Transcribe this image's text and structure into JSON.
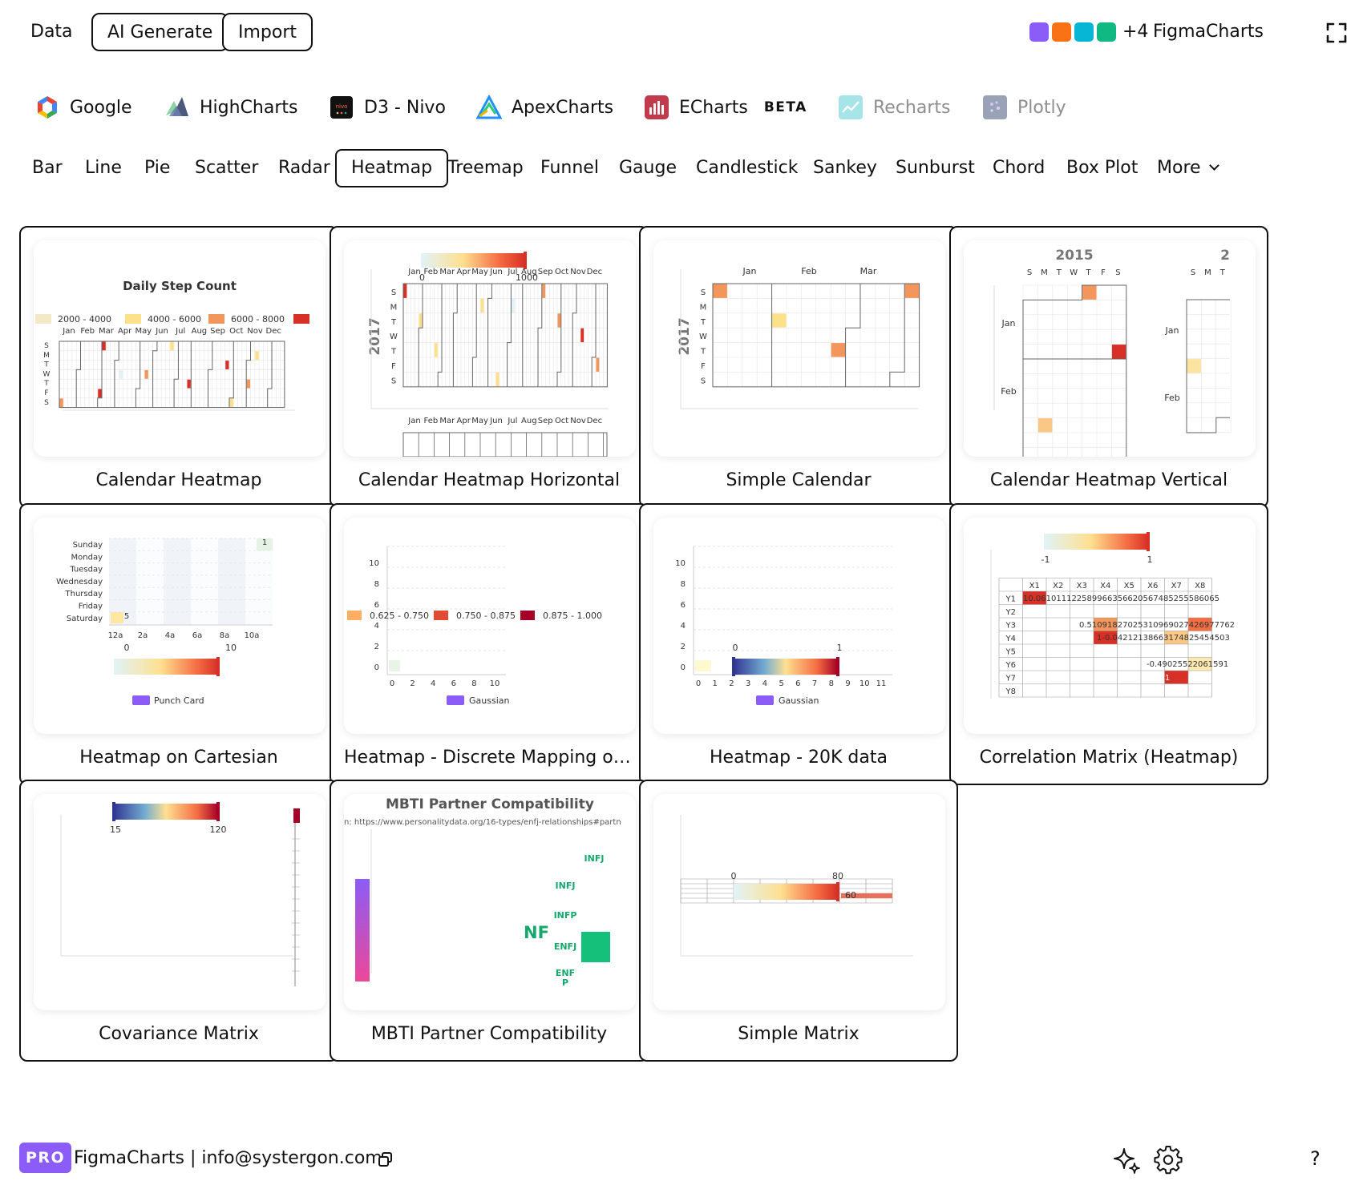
{
  "topbar": {
    "data_label": "Data",
    "ai_generate_label": "AI Generate",
    "import_label": "Import",
    "swatch_colors": [
      "#8b5cf6",
      "#f97316",
      "#06b6d4",
      "#10b981"
    ],
    "plus_count": "+4",
    "brand": "FigmaCharts",
    "fullscreen_icon": "fullscreen-icon"
  },
  "libraries": [
    {
      "label": "Google",
      "icon": "google-logo",
      "beta": ""
    },
    {
      "label": "HighCharts",
      "icon": "highcharts-logo",
      "beta": ""
    },
    {
      "label": "D3 - Nivo",
      "icon": "nivo-logo",
      "beta": ""
    },
    {
      "label": "ApexCharts",
      "icon": "apexcharts-logo",
      "beta": ""
    },
    {
      "label": "ECharts",
      "icon": "echarts-logo",
      "beta": "BETA"
    },
    {
      "label": "Recharts",
      "icon": "recharts-logo",
      "beta": ""
    },
    {
      "label": "Plotly",
      "icon": "plotly-logo",
      "beta": ""
    }
  ],
  "tabs": [
    "Bar",
    "Line",
    "Pie",
    "Scatter",
    "Radar",
    "Heatmap",
    "Treemap",
    "Funnel",
    "Gauge",
    "Candlestick",
    "Sankey",
    "Sunburst",
    "Chord",
    "Box Plot",
    "More"
  ],
  "active_tab": "Heatmap",
  "cards": [
    {
      "title": "Calendar Heatmap"
    },
    {
      "title": "Calendar Heatmap Horizontal"
    },
    {
      "title": "Simple Calendar"
    },
    {
      "title": "Calendar Heatmap Vertical"
    },
    {
      "title": "Heatmap on Cartesian"
    },
    {
      "title": "Heatmap - Discrete Mapping of Gaussian"
    },
    {
      "title": "Heatmap - 20K data"
    },
    {
      "title": "Correlation Matrix (Heatmap)"
    },
    {
      "title": "Covariance Matrix"
    },
    {
      "title": "MBTI Partner Compatibility"
    },
    {
      "title": "Simple Matrix"
    }
  ],
  "thumbs": {
    "cal1": {
      "title": "Daily Step Count",
      "legend": [
        "2000 - 4000",
        "4000 - 6000",
        "6000 - 8000"
      ],
      "legend_colors": [
        "#f3e9c6",
        "#fde08a",
        "#f2965c",
        "#d73027"
      ],
      "months": [
        "Jan",
        "Feb",
        "Mar",
        "Apr",
        "May",
        "Jun",
        "Jul",
        "Aug",
        "Sep",
        "Oct",
        "Nov",
        "Dec"
      ],
      "days": [
        "S",
        "M",
        "T",
        "W",
        "T",
        "F",
        "S"
      ]
    },
    "cal2": {
      "year": "2017",
      "scale_min": "0",
      "scale_max": "1000",
      "months": [
        "Jan",
        "Feb",
        "Mar",
        "Apr",
        "May",
        "Jun",
        "Jul",
        "Aug",
        "Sep",
        "Oct",
        "Nov",
        "Dec"
      ],
      "days": [
        "S",
        "M",
        "T",
        "W",
        "T",
        "F",
        "S"
      ]
    },
    "cal3": {
      "year": "2017",
      "months": [
        "Jan",
        "Feb",
        "Mar"
      ],
      "days": [
        "S",
        "M",
        "T",
        "W",
        "T",
        "F",
        "S"
      ]
    },
    "cal4": {
      "year": "2015",
      "year2": "2",
      "days": [
        "S",
        "M",
        "T",
        "W",
        "T",
        "F",
        "S"
      ],
      "days2": [
        "S",
        "M",
        "T"
      ],
      "months": [
        "Jan",
        "Feb"
      ]
    },
    "cart": {
      "days": [
        "Sunday",
        "Monday",
        "Tuesday",
        "Wednesday",
        "Thursday",
        "Friday",
        "Saturday"
      ],
      "hours": [
        "12a",
        "2a",
        "4a",
        "6a",
        "8a",
        "10a"
      ],
      "val_top": "1",
      "val_bottom": "5",
      "scale_min": "0",
      "scale_max": "10",
      "legend": "Punch Card"
    },
    "discrete": {
      "y_ticks": [
        "10",
        "8",
        "6",
        "4",
        "2",
        "0"
      ],
      "x_ticks": [
        "0",
        "2",
        "4",
        "6",
        "8",
        "10"
      ],
      "legend": [
        "0.625 - 0.750",
        "0.750 - 0.875",
        "0.875 - 1.000"
      ],
      "legend_colors": [
        "#fdae61",
        "#e34a33",
        "#a50026"
      ],
      "series": "Gaussian"
    },
    "k20": {
      "y_ticks": [
        "10",
        "8",
        "6",
        "4",
        "2",
        "0"
      ],
      "x_ticks": [
        "0",
        "1",
        "2",
        "3",
        "4",
        "5",
        "6",
        "7",
        "8",
        "9",
        "10",
        "11"
      ],
      "scale_min": "0",
      "scale_max": "1",
      "series": "Gaussian"
    },
    "corr": {
      "scale_min": "-1",
      "scale_max": "1",
      "cols": [
        "X1",
        "X2",
        "X3",
        "X4",
        "X5",
        "X6",
        "X7",
        "X8"
      ],
      "rows": [
        "Y1",
        "Y2",
        "Y3",
        "Y4",
        "Y5",
        "Y6",
        "Y7",
        "Y8"
      ],
      "y1_text": "10.061011122589966356620567485255586065",
      "y3_text": "0.51091827025310969027426977762",
      "y4_text": "1-0.04212138663174825454503",
      "y6_text": "-0.49025522061591",
      "y7_text": "1"
    },
    "cov": {
      "scale_min": "15",
      "scale_max": "120"
    },
    "mbti": {
      "title": "MBTI Partner Compatibility",
      "source": "n: https://www.personalitydata.org/16-types/enfj-relationships#partn",
      "group": "NF",
      "labels": [
        "INFJ",
        "INFJ",
        "INFP",
        "ENFJ",
        "ENF",
        "P"
      ]
    },
    "simple": {
      "scale_min": "0",
      "scale_max": "80",
      "value": "60"
    }
  },
  "footer": {
    "pro_label": "PRO",
    "text": "FigmaCharts | info@systergon.com",
    "copy_icon": "copy-icon",
    "sparkle_icon": "sparkle-icon",
    "settings_icon": "gear-icon",
    "help_label": "?"
  }
}
